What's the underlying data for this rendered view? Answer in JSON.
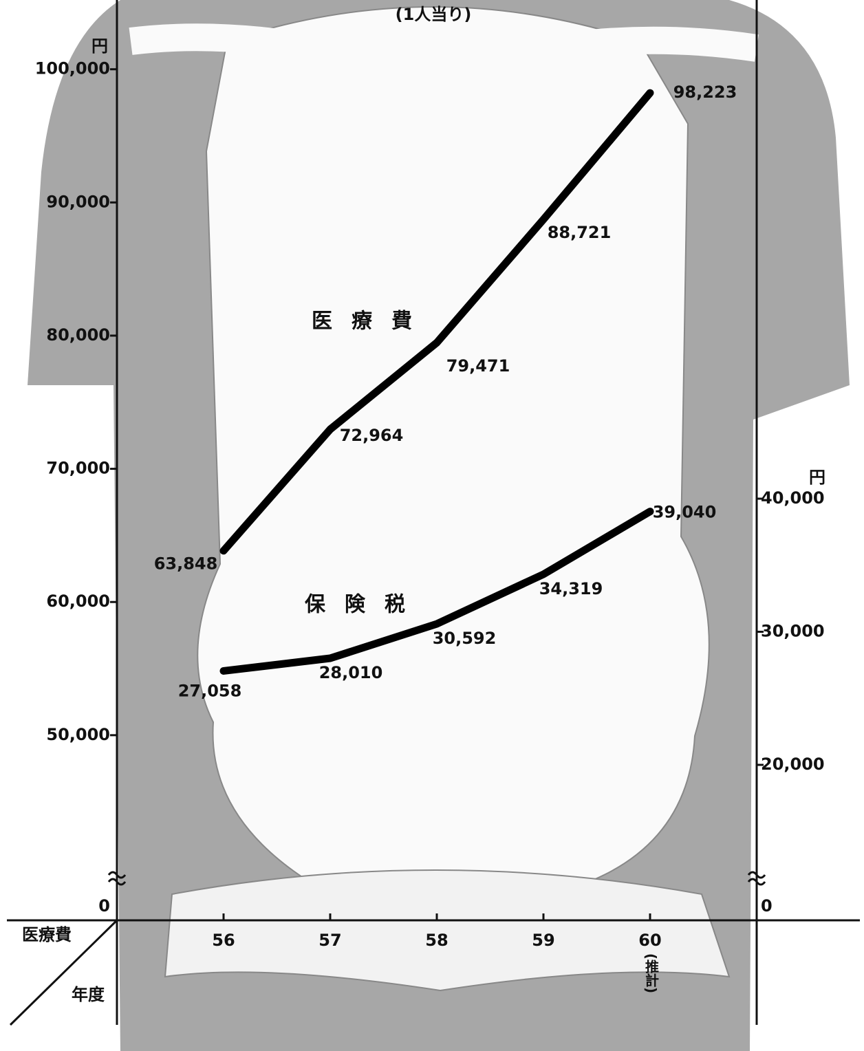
{
  "chart_data": {
    "type": "line",
    "title": "(1人当り)",
    "y_unit": "円",
    "y2_unit": "円",
    "x_corner_label": "医療費",
    "x_axis_label": "年度",
    "categories": [
      "56",
      "57",
      "58",
      "59",
      "60"
    ],
    "category_note": "(推計)",
    "series": [
      {
        "name": "医療費",
        "color": "#000000",
        "values": [
          63848,
          72964,
          79471,
          88721,
          98223
        ],
        "value_labels": [
          "63,848",
          "72,964",
          "79,471",
          "88,721",
          "98,223"
        ]
      },
      {
        "name": "保険税",
        "color": "#000000",
        "axis": "y2",
        "values": [
          27058,
          28010,
          30592,
          34319,
          39040
        ],
        "value_labels": [
          "27,058",
          "28,010",
          "30,592",
          "34,319",
          "39,040"
        ]
      }
    ],
    "ylim": [
      36100,
      105200
    ],
    "yticks": [
      0,
      {
        "value": 50000,
        "label": "50,000"
      },
      {
        "value": 60000,
        "label": "60,000"
      },
      {
        "value": 70000,
        "label": "70,000"
      },
      {
        "value": 80000,
        "label": "80,000"
      },
      {
        "value": 90000,
        "label": "90,000"
      },
      {
        "value": 100000,
        "label": "100,000"
      }
    ],
    "y2lim": [
      8320,
      77470
    ],
    "y2ticks": [
      0,
      {
        "value": 20000,
        "label": "20,000"
      },
      {
        "value": 30000,
        "label": "30,000"
      },
      {
        "value": 40000,
        "label": "40,000"
      }
    ],
    "axis_break": true
  }
}
